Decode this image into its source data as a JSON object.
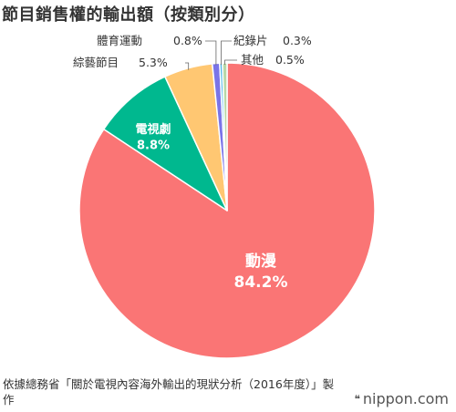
{
  "title": "節目銷售權的輸出額（按類別分）",
  "source": "依據總務省「關於電視內容海外輸出的現狀分析（2016年度）」製作",
  "brand": "nippon.com",
  "brand_mark_icon": "quote-mark-icon",
  "chart_data": {
    "type": "pie",
    "title": "節目銷售權的輸出額（按類別分）",
    "start": "12 o'clock",
    "direction": "clockwise",
    "slices": [
      {
        "label": "動漫",
        "value": 84.2,
        "value_text": "84.2%",
        "color": "#fa7575",
        "label_placement": "inside",
        "text_color": "#ffffff"
      },
      {
        "label": "電視劇",
        "value": 8.8,
        "value_text": "8.8%",
        "color": "#00b88f",
        "label_placement": "inside",
        "text_color": "#ffffff"
      },
      {
        "label": "綜藝節目",
        "value": 5.3,
        "value_text": "5.3%",
        "color": "#ffc772",
        "label_placement": "outside-left",
        "text_color": "#333333"
      },
      {
        "label": "體育運動",
        "value": 0.8,
        "value_text": "0.8%",
        "color": "#7a74e8",
        "label_placement": "outside-left",
        "text_color": "#333333"
      },
      {
        "label": "紀錄片",
        "value": 0.3,
        "value_text": "0.3%",
        "color": "#52b7e8",
        "label_placement": "outside-right",
        "text_color": "#333333"
      },
      {
        "label": "其他",
        "value": 0.5,
        "value_text": "0.5%",
        "color": "#b8d8a8",
        "label_placement": "outside-right",
        "text_color": "#333333"
      }
    ]
  }
}
